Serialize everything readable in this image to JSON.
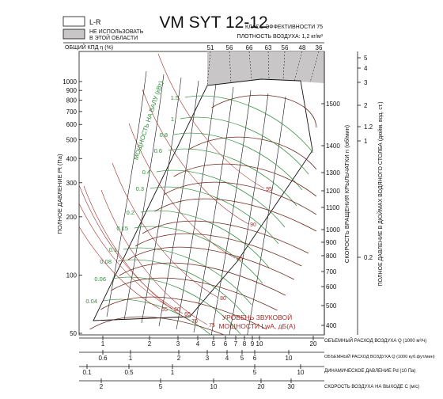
{
  "title": "VM SYT 12-12",
  "legend": {
    "lr_label": "L-R",
    "out_of_range_line1": "НЕ ИСПОЛЬЗОВАТЬ",
    "out_of_range_line2": "В ЭТОЙ ОБЛАСТИ"
  },
  "header": {
    "efficiency_class": "КЛАСС ЭФФЕКТИВНОСТИ 75",
    "air_density": "ПЛОТНОСТЬ ВОЗДУХА: 1,2 кг/м³",
    "efficiency_label": "ОБЩИЙ КПД η (%)"
  },
  "colors": {
    "efficiency_curves": "#111111",
    "power_curves": "#2e8b3a",
    "sound_curves": "#a0302a",
    "rpm_curves": "#6e2a1e",
    "forbidden_area": "#c8c6c6"
  },
  "chart_data": {
    "type": "line",
    "axes": {
      "pressure_pa": {
        "label": "ПОЛНОЕ ДАВЛЕНИЕ Pt (Па)",
        "scale": "log",
        "range": [
          50,
          1200
        ],
        "ticks": [
          "50",
          "100",
          "200",
          "300",
          "400",
          "500",
          "600",
          "700",
          "800",
          "900",
          "1000"
        ]
      },
      "rpm": {
        "label": "СКОРОСТЬ ВРАЩЕНИЯ КРЫЛЬЧАТКИ n (об/мин)",
        "ticks": [
          "400",
          "500",
          "600",
          "700",
          "800",
          "900",
          "1000",
          "1100",
          "1200",
          "1300",
          "1400",
          "1500"
        ]
      },
      "pressure_inwg": {
        "label": "ПОЛНОЕ ДАВЛЕНИЕ В ДЮЙМАХ ВОДЯНОГО СТОЛБА (дюйм. вод. ст.)",
        "ticks": [
          "0.2",
          "1",
          "1.2",
          "2",
          "3",
          "4",
          "5"
        ]
      },
      "efficiency_top": {
        "ticks": [
          "51",
          "56",
          "66",
          "63",
          "56",
          "48",
          "36"
        ]
      },
      "flow_m3s": {
        "label": "ОБЪЕМНЫЙ РАСХОД ВОЗДУХА Q (1000 м³/ч)",
        "scale": "log",
        "ticks": [
          "1",
          "2",
          "3",
          "4",
          "5",
          "6",
          "7",
          "8",
          "9",
          "10",
          "20"
        ]
      },
      "flow_cfm": {
        "label": "ОБЪЕМНЫЙ РАСХОД ВОЗДУХА Q (1000 куб.фут/мин)",
        "ticks": [
          "0.6",
          "1",
          "2",
          "3",
          "4",
          "5",
          "6",
          "10"
        ]
      },
      "dynamic_pressure": {
        "label": "ДИНАМИЧЕСКОЕ ДАВЛЕНИЕ Pd (10 Па)",
        "ticks": [
          "0.1",
          "0.5",
          "1",
          "5",
          "10"
        ]
      },
      "outlet_velocity": {
        "label": "СКОРОСТЬ ВОЗДУХА НА ВЫХОДЕ C (м/с)",
        "ticks": [
          "2",
          "5",
          "10",
          "20",
          "30"
        ]
      }
    },
    "power_label": "МОЩНОСТЬ НА ВАЛУ (кВт)",
    "power_levels": [
      "1.5",
      "1",
      "0.8",
      "0.6",
      "0.4",
      "0.3",
      "0.2",
      "0.15",
      "0.1",
      "0.08",
      "0.06",
      "0.04"
    ],
    "sound_label_line1": "УРОВЕНЬ ЗВУКОВОЙ",
    "sound_label_line2": "МОЩНОСТИ LwA, дБ(А)",
    "sound_levels": [
      "95",
      "90",
      "85",
      "80",
      "75",
      "70",
      "65",
      "60",
      "55"
    ]
  }
}
